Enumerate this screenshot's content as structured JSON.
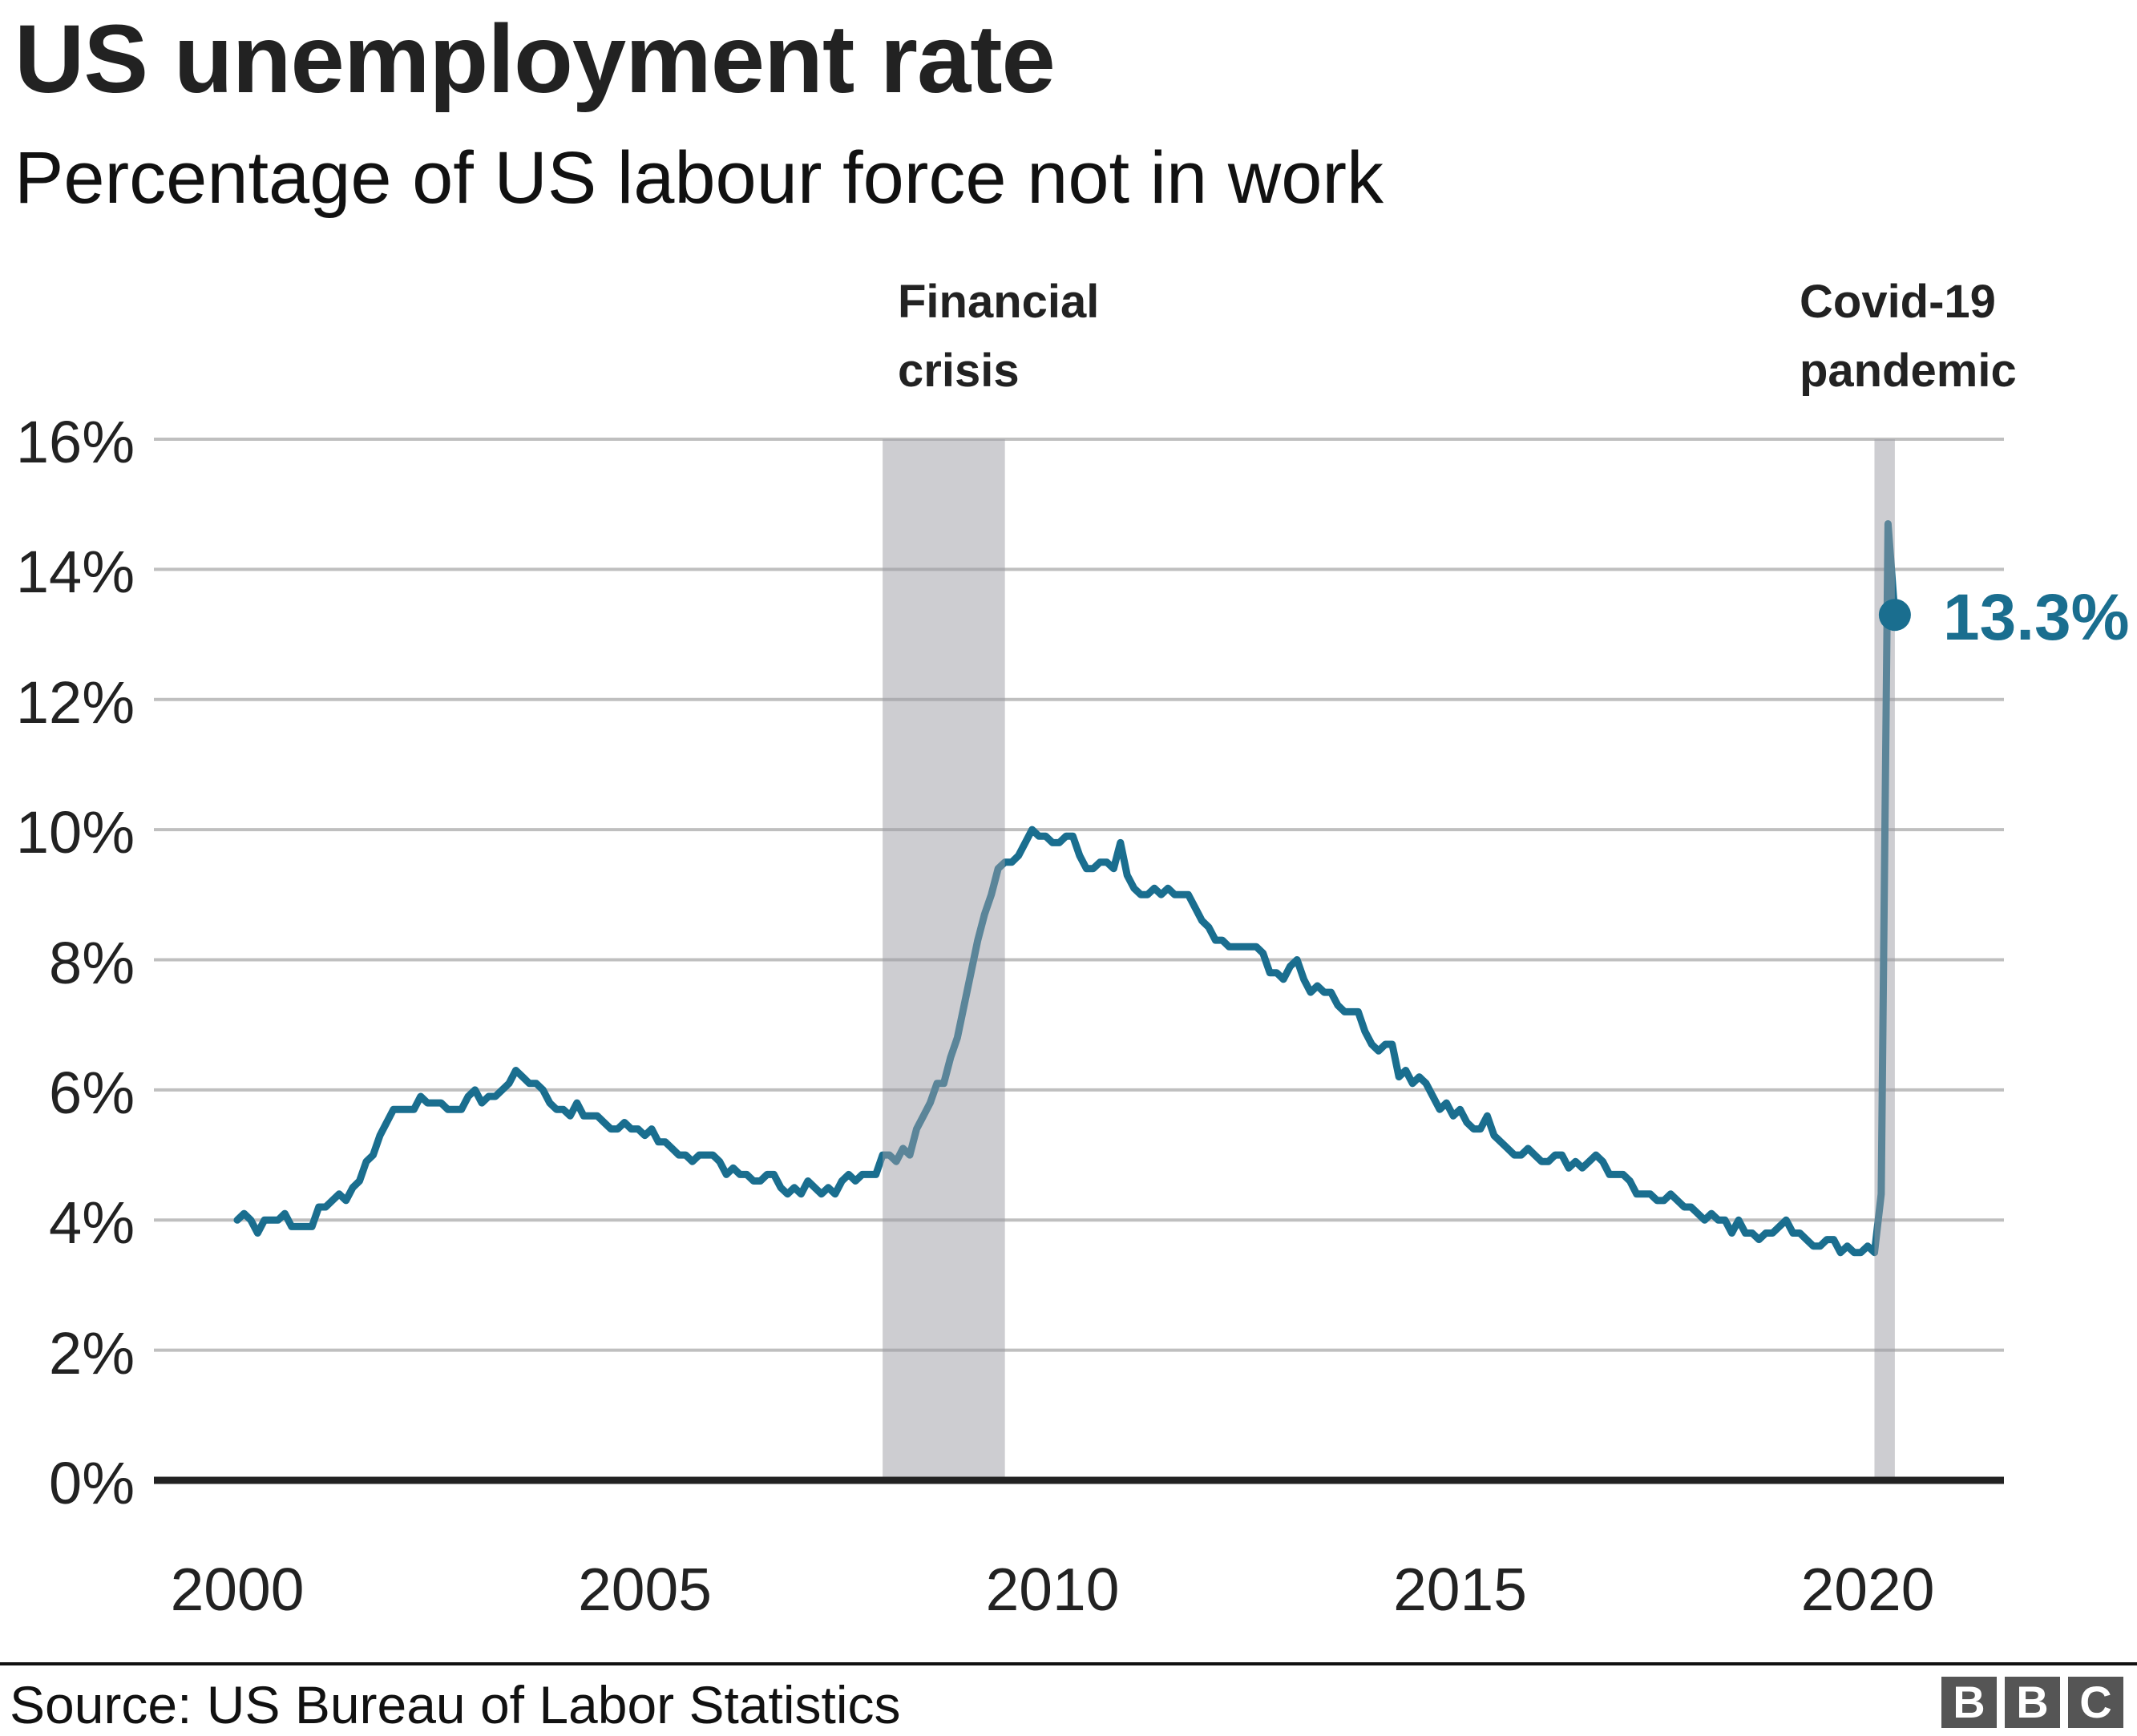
{
  "header": {
    "title": "US unemployment rate",
    "subtitle": "Percentage of US labour force not in work"
  },
  "annotations": {
    "financial_crisis": {
      "line1": "Financial",
      "line2": "crisis"
    },
    "covid": {
      "line1": "Covid-19",
      "line2": "pandemic"
    },
    "callout_value": "13.3%"
  },
  "axes": {
    "y_ticks": [
      "16%",
      "14%",
      "12%",
      "10%",
      "8%",
      "6%",
      "4%",
      "2%",
      "0%"
    ],
    "x_ticks": [
      "2000",
      "2005",
      "2010",
      "2015",
      "2020"
    ]
  },
  "footer": {
    "source": "Source: US Bureau of Labor Statistics",
    "logo": [
      "B",
      "B",
      "C"
    ]
  },
  "colors": {
    "line": "#1a6e8f",
    "gridline": "#bfbfbf",
    "baseline": "#222222",
    "band": "#c8c8cc",
    "logo": "#555555"
  },
  "chart_data": {
    "type": "line",
    "title": "US unemployment rate",
    "subtitle": "Percentage of US labour force not in work",
    "xlabel": "",
    "ylabel": "",
    "ylim": [
      0,
      16
    ],
    "yticks": [
      0,
      2,
      4,
      6,
      8,
      10,
      12,
      14,
      16
    ],
    "xticks": [
      2000,
      2005,
      2010,
      2015,
      2020
    ],
    "grid": true,
    "legend": null,
    "x_start": "2000-01",
    "x_end": "2020-05",
    "frequency": "monthly",
    "shaded_periods": [
      {
        "label": "Financial crisis",
        "start": "2007-12",
        "end": "2009-06"
      },
      {
        "label": "Covid-19 pandemic",
        "start": "2020-02",
        "end": "2020-05"
      }
    ],
    "annotation": {
      "point": "2020-05",
      "value": 13.3,
      "text": "13.3%"
    },
    "series": [
      {
        "name": "US unemployment rate (%)",
        "values": [
          4.0,
          4.1,
          4.0,
          3.8,
          4.0,
          4.0,
          4.0,
          4.1,
          3.9,
          3.9,
          3.9,
          3.9,
          4.2,
          4.2,
          4.3,
          4.4,
          4.3,
          4.5,
          4.6,
          4.9,
          5.0,
          5.3,
          5.5,
          5.7,
          5.7,
          5.7,
          5.7,
          5.9,
          5.8,
          5.8,
          5.8,
          5.7,
          5.7,
          5.7,
          5.9,
          6.0,
          5.8,
          5.9,
          5.9,
          6.0,
          6.1,
          6.3,
          6.2,
          6.1,
          6.1,
          6.0,
          5.8,
          5.7,
          5.7,
          5.6,
          5.8,
          5.6,
          5.6,
          5.6,
          5.5,
          5.4,
          5.4,
          5.5,
          5.4,
          5.4,
          5.3,
          5.4,
          5.2,
          5.2,
          5.1,
          5.0,
          5.0,
          4.9,
          5.0,
          5.0,
          5.0,
          4.9,
          4.7,
          4.8,
          4.7,
          4.7,
          4.6,
          4.6,
          4.7,
          4.7,
          4.5,
          4.4,
          4.5,
          4.4,
          4.6,
          4.5,
          4.4,
          4.5,
          4.4,
          4.6,
          4.7,
          4.6,
          4.7,
          4.7,
          4.7,
          5.0,
          5.0,
          4.9,
          5.1,
          5.0,
          5.4,
          5.6,
          5.8,
          6.1,
          6.1,
          6.5,
          6.8,
          7.3,
          7.8,
          8.3,
          8.7,
          9.0,
          9.4,
          9.5,
          9.5,
          9.6,
          9.8,
          10.0,
          9.9,
          9.9,
          9.8,
          9.8,
          9.9,
          9.9,
          9.6,
          9.4,
          9.4,
          9.5,
          9.5,
          9.4,
          9.8,
          9.3,
          9.1,
          9.0,
          9.0,
          9.1,
          9.0,
          9.1,
          9.0,
          9.0,
          9.0,
          8.8,
          8.6,
          8.5,
          8.3,
          8.3,
          8.2,
          8.2,
          8.2,
          8.2,
          8.2,
          8.1,
          7.8,
          7.8,
          7.7,
          7.9,
          8.0,
          7.7,
          7.5,
          7.6,
          7.5,
          7.5,
          7.3,
          7.2,
          7.2,
          7.2,
          6.9,
          6.7,
          6.6,
          6.7,
          6.7,
          6.2,
          6.3,
          6.1,
          6.2,
          6.1,
          5.9,
          5.7,
          5.8,
          5.6,
          5.7,
          5.5,
          5.4,
          5.4,
          5.6,
          5.3,
          5.2,
          5.1,
          5.0,
          5.0,
          5.1,
          5.0,
          4.9,
          4.9,
          5.0,
          5.0,
          4.8,
          4.9,
          4.8,
          4.9,
          5.0,
          4.9,
          4.7,
          4.7,
          4.7,
          4.6,
          4.4,
          4.4,
          4.4,
          4.3,
          4.3,
          4.4,
          4.3,
          4.2,
          4.2,
          4.1,
          4.0,
          4.1,
          4.0,
          4.0,
          3.8,
          4.0,
          3.8,
          3.8,
          3.7,
          3.8,
          3.8,
          3.9,
          4.0,
          3.8,
          3.8,
          3.7,
          3.6,
          3.6,
          3.7,
          3.7,
          3.5,
          3.6,
          3.5,
          3.5,
          3.6,
          3.5,
          4.4,
          14.7,
          13.3
        ]
      }
    ]
  }
}
